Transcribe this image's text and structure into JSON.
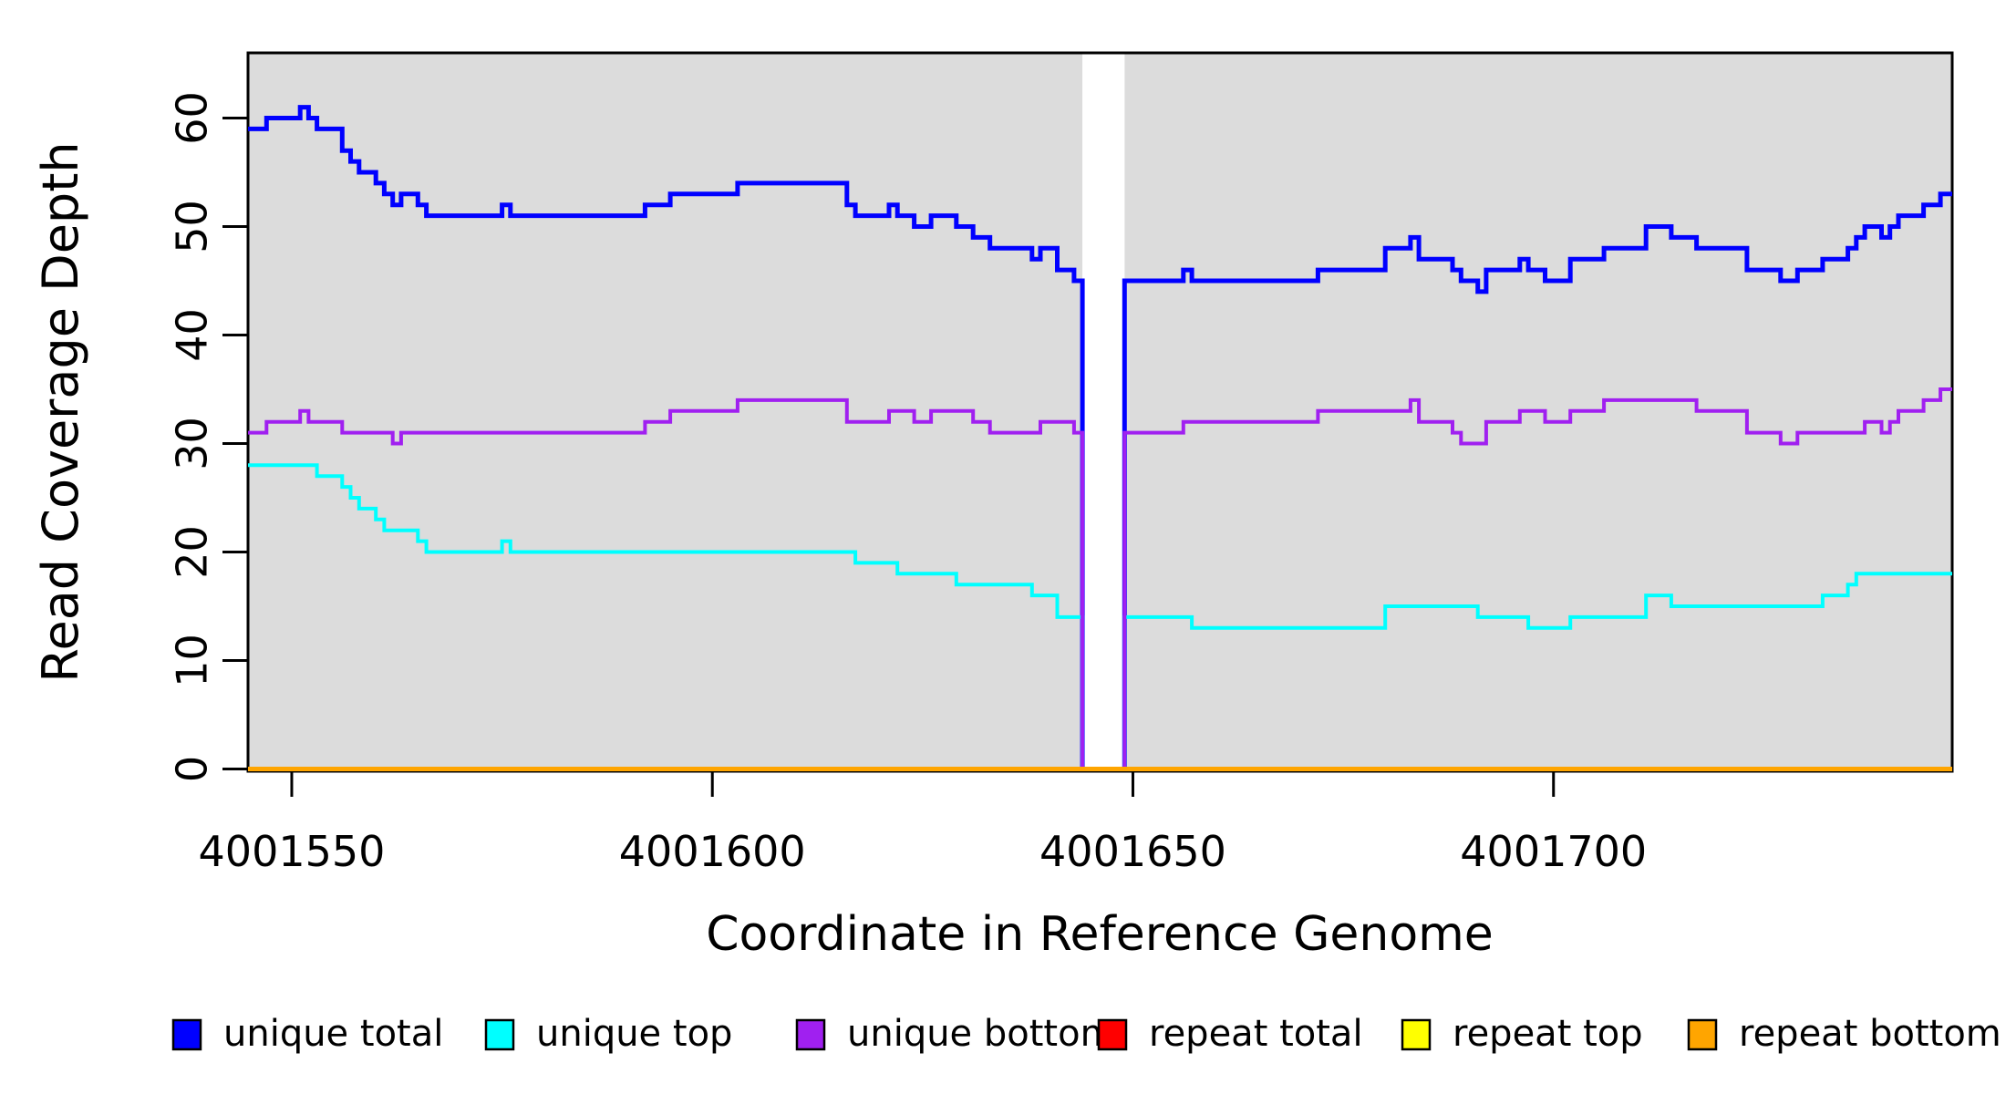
{
  "page": {
    "background": "#ffffff"
  },
  "chart_data": {
    "type": "line",
    "line_style": "step-after",
    "title": "",
    "xlabel": "Coordinate in Reference Genome",
    "ylabel": "Read Coverage Depth",
    "x_ticks": [
      4001550,
      4001600,
      4001650,
      4001700
    ],
    "x_tick_labels": [
      "4001550",
      "4001600",
      "4001650",
      "4001700"
    ],
    "y_ticks": [
      0,
      10,
      20,
      30,
      40,
      50,
      60
    ],
    "y_tick_labels": [
      "0",
      "10",
      "20",
      "30",
      "40",
      "50",
      "60"
    ],
    "x_range": [
      4001544.8,
      4001747.4
    ],
    "y_range": [
      0,
      66
    ],
    "grid": false,
    "plot_background": "#dcdcdc",
    "frame_color": "#000000",
    "coverage_gap": {
      "start": 4001644,
      "end": 4001649
    },
    "legend_position": "bottom",
    "series": [
      {
        "name": "unique total",
        "color": "#0000ff",
        "width": 5,
        "steps": [
          [
            4001545,
            59
          ],
          [
            4001547,
            60
          ],
          [
            4001551,
            61
          ],
          [
            4001552,
            60
          ],
          [
            4001553,
            59
          ],
          [
            4001556,
            57
          ],
          [
            4001557,
            56
          ],
          [
            4001558,
            55
          ],
          [
            4001560,
            54
          ],
          [
            4001561,
            53
          ],
          [
            4001562,
            52
          ],
          [
            4001563,
            53
          ],
          [
            4001565,
            52
          ],
          [
            4001566,
            51
          ],
          [
            4001575,
            52
          ],
          [
            4001576,
            51
          ],
          [
            4001592,
            52
          ],
          [
            4001595,
            53
          ],
          [
            4001603,
            54
          ],
          [
            4001616,
            52
          ],
          [
            4001617,
            51
          ],
          [
            4001621,
            52
          ],
          [
            4001622,
            51
          ],
          [
            4001624,
            50
          ],
          [
            4001626,
            51
          ],
          [
            4001629,
            50
          ],
          [
            4001631,
            49
          ],
          [
            4001633,
            48
          ],
          [
            4001638,
            47
          ],
          [
            4001639,
            48
          ],
          [
            4001641,
            46
          ],
          [
            4001643,
            45
          ],
          [
            4001644,
            0
          ],
          [
            4001649,
            45
          ],
          [
            4001656,
            46
          ],
          [
            4001657,
            45
          ],
          [
            4001672,
            46
          ],
          [
            4001680,
            48
          ],
          [
            4001683,
            49
          ],
          [
            4001684,
            47
          ],
          [
            4001688,
            46
          ],
          [
            4001689,
            45
          ],
          [
            4001691,
            44
          ],
          [
            4001692,
            46
          ],
          [
            4001696,
            47
          ],
          [
            4001697,
            46
          ],
          [
            4001699,
            45
          ],
          [
            4001702,
            47
          ],
          [
            4001706,
            48
          ],
          [
            4001711,
            50
          ],
          [
            4001714,
            49
          ],
          [
            4001717,
            48
          ],
          [
            4001723,
            46
          ],
          [
            4001727,
            45
          ],
          [
            4001729,
            46
          ],
          [
            4001732,
            47
          ],
          [
            4001735,
            48
          ],
          [
            4001736,
            49
          ],
          [
            4001737,
            50
          ],
          [
            4001739,
            49
          ],
          [
            4001740,
            50
          ],
          [
            4001741,
            51
          ],
          [
            4001744,
            52
          ],
          [
            4001746,
            53
          ]
        ]
      },
      {
        "name": "unique top",
        "color": "#00ffff",
        "width": 4,
        "steps": [
          [
            4001545,
            28
          ],
          [
            4001553,
            27
          ],
          [
            4001556,
            26
          ],
          [
            4001557,
            25
          ],
          [
            4001558,
            24
          ],
          [
            4001560,
            23
          ],
          [
            4001561,
            22
          ],
          [
            4001565,
            21
          ],
          [
            4001566,
            20
          ],
          [
            4001575,
            21
          ],
          [
            4001576,
            20
          ],
          [
            4001617,
            19
          ],
          [
            4001622,
            18
          ],
          [
            4001629,
            17
          ],
          [
            4001638,
            16
          ],
          [
            4001641,
            14
          ],
          [
            4001644,
            0
          ],
          [
            4001649,
            14
          ],
          [
            4001657,
            13
          ],
          [
            4001680,
            15
          ],
          [
            4001691,
            14
          ],
          [
            4001697,
            13
          ],
          [
            4001702,
            14
          ],
          [
            4001711,
            16
          ],
          [
            4001714,
            15
          ],
          [
            4001732,
            16
          ],
          [
            4001735,
            17
          ],
          [
            4001736,
            18
          ]
        ]
      },
      {
        "name": "unique bottom",
        "color": "#a020f0",
        "width": 4,
        "steps": [
          [
            4001545,
            31
          ],
          [
            4001547,
            32
          ],
          [
            4001551,
            33
          ],
          [
            4001552,
            32
          ],
          [
            4001556,
            31
          ],
          [
            4001562,
            30
          ],
          [
            4001563,
            31
          ],
          [
            4001592,
            32
          ],
          [
            4001595,
            33
          ],
          [
            4001603,
            34
          ],
          [
            4001616,
            32
          ],
          [
            4001621,
            33
          ],
          [
            4001624,
            32
          ],
          [
            4001626,
            33
          ],
          [
            4001631,
            32
          ],
          [
            4001633,
            31
          ],
          [
            4001639,
            32
          ],
          [
            4001643,
            31
          ],
          [
            4001644,
            0
          ],
          [
            4001649,
            31
          ],
          [
            4001656,
            32
          ],
          [
            4001672,
            33
          ],
          [
            4001683,
            34
          ],
          [
            4001684,
            32
          ],
          [
            4001688,
            31
          ],
          [
            4001689,
            30
          ],
          [
            4001692,
            32
          ],
          [
            4001696,
            33
          ],
          [
            4001699,
            32
          ],
          [
            4001702,
            33
          ],
          [
            4001706,
            34
          ],
          [
            4001717,
            33
          ],
          [
            4001723,
            31
          ],
          [
            4001727,
            30
          ],
          [
            4001729,
            31
          ],
          [
            4001737,
            32
          ],
          [
            4001739,
            31
          ],
          [
            4001740,
            32
          ],
          [
            4001741,
            33
          ],
          [
            4001744,
            34
          ],
          [
            4001746,
            35
          ]
        ]
      },
      {
        "name": "repeat total",
        "color": "#ff0000",
        "width": 4,
        "steps": [
          [
            4001545,
            0
          ]
        ]
      },
      {
        "name": "repeat top",
        "color": "#ffff00",
        "width": 4,
        "steps": [
          [
            4001545,
            0
          ]
        ]
      },
      {
        "name": "repeat bottom",
        "color": "#ffa500",
        "width": 5,
        "steps": [
          [
            4001545,
            0
          ]
        ]
      }
    ],
    "legend": [
      {
        "label": "unique total",
        "color": "#0000ff"
      },
      {
        "label": "unique top",
        "color": "#00ffff"
      },
      {
        "label": "unique bottom",
        "color": "#a020f0"
      },
      {
        "label": "repeat total",
        "color": "#ff0000"
      },
      {
        "label": "repeat top",
        "color": "#ffff00"
      },
      {
        "label": "repeat bottom",
        "color": "#ffa500"
      }
    ]
  }
}
